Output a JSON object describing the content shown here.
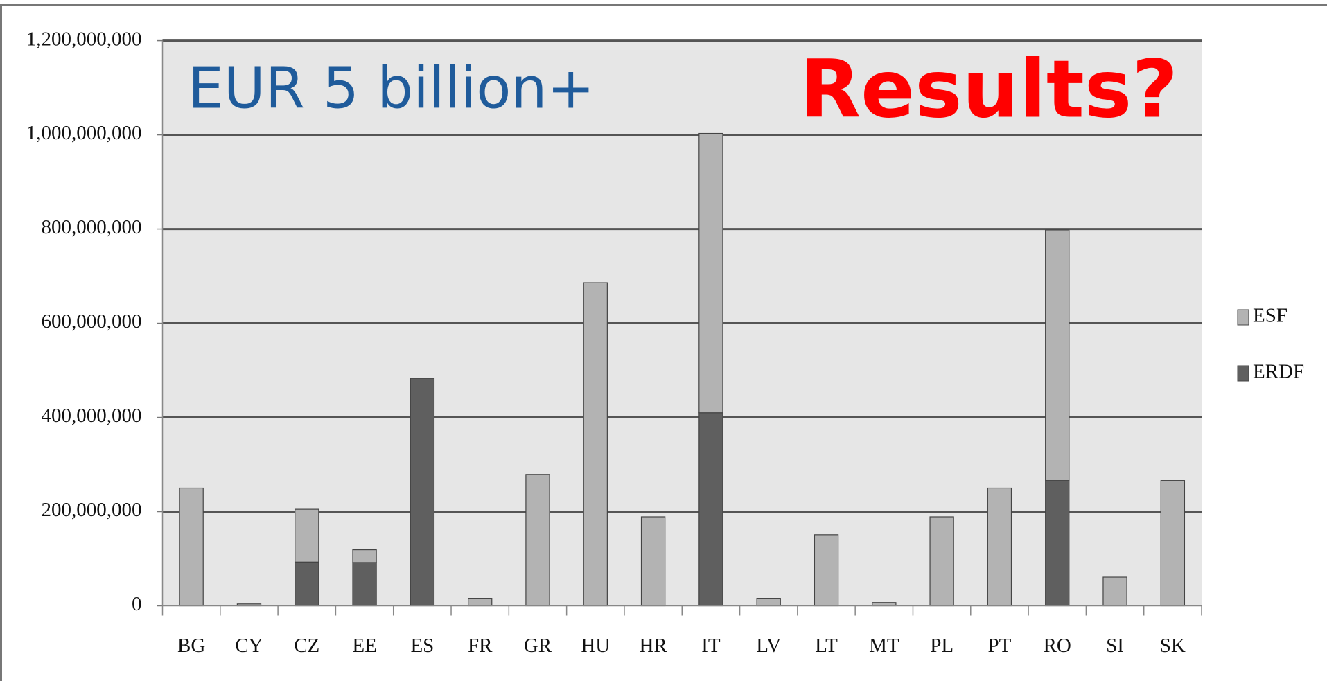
{
  "chart_data": {
    "type": "stacked_bar",
    "annotations": [
      "EUR 5 billion+",
      "Results?"
    ],
    "categories": [
      "BG",
      "CY",
      "CZ",
      "EE",
      "ES",
      "FR",
      "GR",
      "HU",
      "HR",
      "IT",
      "LV",
      "LT",
      "MT",
      "PL",
      "PT",
      "RO",
      "SI",
      "SK"
    ],
    "series": [
      {
        "name": "ERDF",
        "color": "#5f5f5f",
        "values": [
          0,
          0,
          93000000,
          92000000,
          483000000,
          0,
          0,
          0,
          0,
          410000000,
          0,
          0,
          0,
          0,
          0,
          266000000,
          0,
          0
        ]
      },
      {
        "name": "ESF",
        "color": "#b3b3b3",
        "values": [
          250000000,
          4000000,
          112000000,
          27000000,
          0,
          16000000,
          279000000,
          686000000,
          189000000,
          593000000,
          16000000,
          151000000,
          7000000,
          189000000,
          250000000,
          532000000,
          61000000,
          266000000
        ]
      }
    ],
    "ylim": [
      0,
      1200000000
    ],
    "yticks": [
      0,
      {
        "value": 200000000,
        "label": "200,000,000"
      },
      {
        "value": 400000000,
        "label": "400,000,000"
      },
      {
        "value": 600000000,
        "label": "600,000,000"
      },
      {
        "value": 800000000,
        "label": "800,000,000"
      },
      {
        "value": 1000000000,
        "label": "1,000,000,000"
      },
      {
        "value": 1200000000,
        "label": "1,200,000,000"
      }
    ],
    "grid": true,
    "legend": "right"
  }
}
